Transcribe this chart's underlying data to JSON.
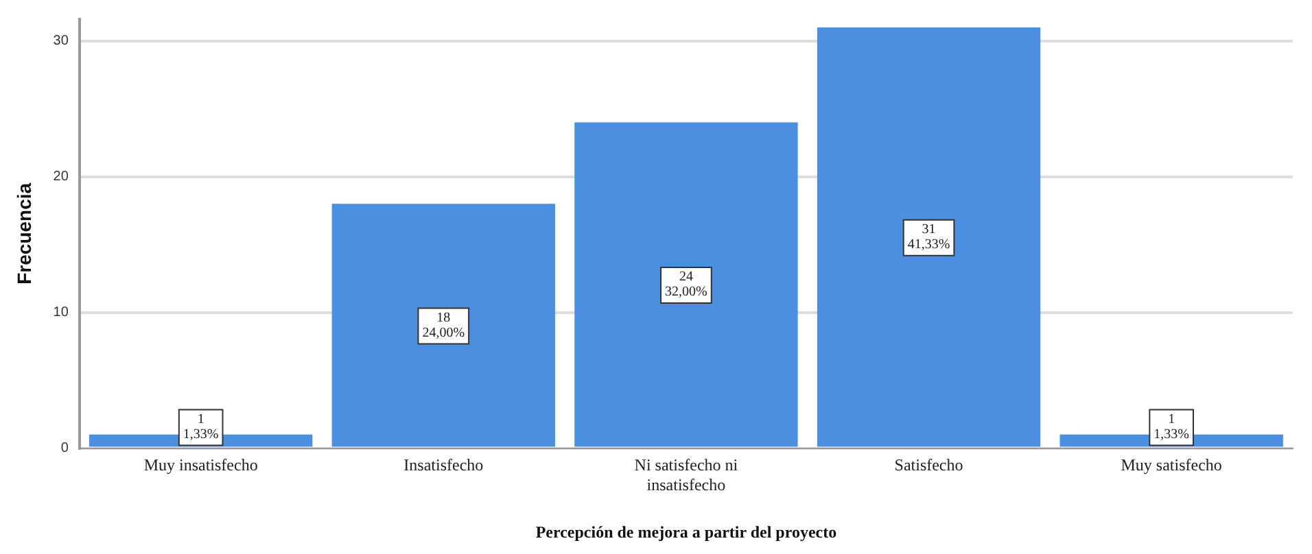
{
  "chart_data": {
    "type": "bar",
    "xlabel": "Percepción de mejora a partir del proyecto",
    "ylabel": "Frecuencia",
    "categories": [
      "Muy insatisfecho",
      "Insatisfecho",
      "Ni satisfecho ni insatisfecho",
      "Satisfecho",
      "Muy satisfecho"
    ],
    "values": [
      1,
      18,
      24,
      31,
      1
    ],
    "color": "#4a8fe0",
    "value_labels": [
      "1\n1,33%",
      "18\n24,00%",
      "24\n32,00%",
      "31\n41,33%",
      "1\n1,33%"
    ],
    "ylim": [
      0,
      31.6
    ],
    "yticks": [
      0,
      10,
      20,
      30
    ],
    "grid": "y"
  }
}
